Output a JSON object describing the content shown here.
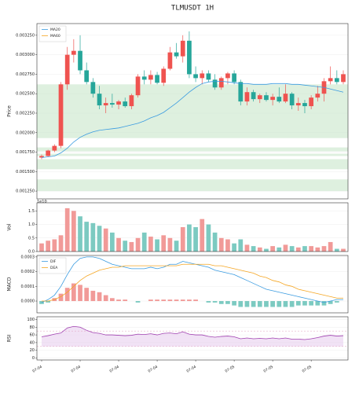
{
  "chart_data": [
    {
      "type": "candlestick",
      "title": "TLMUSDT  1H",
      "ylabel": "Price",
      "ylim": [
        0.00115,
        0.0034
      ],
      "yticks": [
        {
          "value": 0.00125,
          "label": "0.001250"
        },
        {
          "value": 0.0015,
          "label": "0.001500"
        },
        {
          "value": 0.00175,
          "label": "0.001750"
        },
        {
          "value": 0.002,
          "label": "0.002000"
        },
        {
          "value": 0.00225,
          "label": "0.002250"
        },
        {
          "value": 0.0025,
          "label": "0.002500"
        },
        {
          "value": 0.00275,
          "label": "0.002750"
        },
        {
          "value": 0.003,
          "label": "0.003000"
        },
        {
          "value": 0.00325,
          "label": "0.003250"
        }
      ],
      "grid": true,
      "legend": "upper left",
      "up_color": "#ef5350",
      "down_color": "#26a69a",
      "zone_color": "#c8e6c9",
      "zones": [
        [
          0.00193,
          0.00262
        ],
        [
          0.00176,
          0.00181
        ],
        [
          0.0017,
          0.00173
        ],
        [
          0.00153,
          0.00166
        ],
        [
          0.00125,
          0.0014
        ]
      ],
      "open": [
        0.00168,
        0.0017,
        0.00177,
        0.00183,
        0.00262,
        0.003,
        0.00305,
        0.0028,
        0.00265,
        0.0025,
        0.00235,
        0.00238,
        0.00236,
        0.0024,
        0.00234,
        0.00248,
        0.00272,
        0.00268,
        0.00274,
        0.00264,
        0.00282,
        0.00303,
        0.00298,
        0.00318,
        0.00275,
        0.0027,
        0.00276,
        0.00268,
        0.00258,
        0.0027,
        0.00276,
        0.00265,
        0.0024,
        0.00252,
        0.00243,
        0.00248,
        0.00242,
        0.00246,
        0.0024,
        0.0025,
        0.00235,
        0.00238,
        0.00234,
        0.00245,
        0.0025,
        0.00266,
        0.0027,
        0.00265
      ],
      "high": [
        0.00172,
        0.00178,
        0.00185,
        0.00265,
        0.0031,
        0.0032,
        0.00325,
        0.0029,
        0.0027,
        0.0026,
        0.00245,
        0.0025,
        0.00242,
        0.00245,
        0.0025,
        0.00275,
        0.0028,
        0.0028,
        0.00278,
        0.00285,
        0.0031,
        0.00315,
        0.00325,
        0.0033,
        0.00285,
        0.0028,
        0.0028,
        0.00275,
        0.00272,
        0.00278,
        0.0028,
        0.00268,
        0.00258,
        0.00255,
        0.0025,
        0.00252,
        0.0025,
        0.00258,
        0.00262,
        0.00252,
        0.00245,
        0.00242,
        0.00248,
        0.0026,
        0.0027,
        0.00285,
        0.0028,
        0.0028
      ],
      "low": [
        0.00166,
        0.00169,
        0.00175,
        0.0018,
        0.00255,
        0.0029,
        0.00275,
        0.00262,
        0.00245,
        0.0023,
        0.00225,
        0.00232,
        0.0023,
        0.00232,
        0.0023,
        0.00245,
        0.00262,
        0.00262,
        0.00262,
        0.0026,
        0.0028,
        0.00295,
        0.0029,
        0.0027,
        0.00265,
        0.00262,
        0.00265,
        0.00255,
        0.00255,
        0.00262,
        0.00262,
        0.00235,
        0.00235,
        0.0024,
        0.00238,
        0.0024,
        0.00235,
        0.00238,
        0.00238,
        0.0023,
        0.00228,
        0.00225,
        0.0023,
        0.0024,
        0.0024,
        0.00262,
        0.00262,
        0.00262
      ],
      "close": [
        0.0017,
        0.00177,
        0.00183,
        0.00262,
        0.003,
        0.00305,
        0.0028,
        0.00265,
        0.0025,
        0.00235,
        0.00238,
        0.00236,
        0.0024,
        0.00234,
        0.00248,
        0.00272,
        0.00268,
        0.00274,
        0.00264,
        0.00282,
        0.00303,
        0.00298,
        0.00318,
        0.00275,
        0.0027,
        0.00276,
        0.00268,
        0.00258,
        0.0027,
        0.00276,
        0.00265,
        0.0024,
        0.00252,
        0.00243,
        0.00248,
        0.00242,
        0.00246,
        0.0024,
        0.0025,
        0.00235,
        0.00238,
        0.00234,
        0.00245,
        0.0025,
        0.00266,
        0.0027,
        0.00265,
        0.00275
      ],
      "series": [
        {
          "name": "MA20",
          "color": "#3a9be0",
          "values": [
            0.00168,
            0.00169,
            0.0017,
            0.00174,
            0.0018,
            0.00188,
            0.00194,
            0.00198,
            0.00201,
            0.00203,
            0.00204,
            0.00205,
            0.00206,
            0.00208,
            0.0021,
            0.00212,
            0.00215,
            0.00219,
            0.00222,
            0.00226,
            0.00232,
            0.00238,
            0.00245,
            0.00252,
            0.00258,
            0.00263,
            0.00265,
            0.00266,
            0.00266,
            0.00265,
            0.00264,
            0.00263,
            0.00263,
            0.00262,
            0.00262,
            0.00262,
            0.00263,
            0.00263,
            0.00263,
            0.00262,
            0.00262,
            0.00261,
            0.0026,
            0.00259,
            0.00258,
            0.00256,
            0.00254,
            0.00252
          ]
        },
        {
          "name": "MA60",
          "color": "#f5a623",
          "values": [
            null,
            null,
            null,
            null,
            null,
            null,
            null,
            null,
            null,
            null,
            null,
            null,
            null,
            null,
            null,
            null,
            null,
            null,
            null,
            null,
            null,
            null,
            null,
            null,
            null,
            null,
            null,
            null,
            null,
            null,
            null,
            null,
            null,
            null,
            null,
            null,
            null,
            null,
            null,
            null,
            null,
            null,
            null,
            null,
            null,
            null,
            null,
            null
          ]
        }
      ]
    },
    {
      "type": "bar",
      "ylabel": "Vol",
      "offset_label": "1e10",
      "ylim": [
        0,
        1.8
      ],
      "yticks": [
        {
          "value": 0,
          "label": "0.0"
        },
        0.5,
        {
          "value": 1,
          "label": "1.0"
        },
        1.5
      ],
      "grid": true,
      "up_color": "#f19a98",
      "down_color": "#7ccac1",
      "values": [
        0.3,
        0.4,
        0.45,
        0.6,
        1.6,
        1.5,
        1.3,
        1.1,
        1.05,
        0.95,
        0.85,
        0.7,
        0.5,
        0.4,
        0.35,
        0.5,
        0.7,
        0.55,
        0.45,
        0.6,
        0.5,
        0.4,
        0.9,
        1.0,
        0.9,
        1.2,
        1.0,
        0.7,
        0.5,
        0.45,
        0.3,
        0.45,
        0.25,
        0.2,
        0.15,
        0.1,
        0.2,
        0.15,
        0.25,
        0.2,
        0.15,
        0.2,
        0.2,
        0.15,
        0.2,
        0.35,
        0.1,
        0.1
      ]
    },
    {
      "type": "macd",
      "ylabel": "MACD",
      "ylim": [
        -8e-05,
        0.00031
      ],
      "yticks": [
        {
          "value": 0,
          "label": "0.0000"
        },
        {
          "value": 0.0001,
          "label": "0.0001"
        },
        {
          "value": 0.0002,
          "label": "0.0002"
        },
        {
          "value": 0.0003,
          "label": "0.0003"
        }
      ],
      "grid": true,
      "legend": "upper left",
      "up_color": "#f19a98",
      "down_color": "#7ccac1",
      "hist": [
        -2e-05,
        -1e-05,
        2e-05,
        5e-05,
        9e-05,
        0.00012,
        0.00011,
        9e-05,
        7e-05,
        6e-05,
        4e-05,
        2e-05,
        1e-05,
        1e-05,
        0.0,
        -1e-05,
        0.0,
        1e-05,
        1e-05,
        1e-05,
        1e-05,
        1e-05,
        1e-05,
        1e-05,
        1e-05,
        0.0,
        -1e-05,
        -1e-05,
        -2e-05,
        -2e-05,
        -3e-05,
        -4e-05,
        -4e-05,
        -4e-05,
        -4e-05,
        -4e-05,
        -4e-05,
        -4e-05,
        -4e-05,
        -4e-05,
        -3e-05,
        -3e-05,
        -3e-05,
        -3e-05,
        -3e-05,
        -2e-05,
        -1e-05,
        0.0
      ],
      "series": [
        {
          "name": "DIF",
          "color": "#3a9be0",
          "values": [
            -1e-05,
            1e-05,
            4e-05,
            0.0001,
            0.00018,
            0.00025,
            0.00029,
            0.0003,
            0.0003,
            0.00029,
            0.00027,
            0.00025,
            0.00024,
            0.00023,
            0.00022,
            0.00022,
            0.00022,
            0.00023,
            0.00022,
            0.00023,
            0.00025,
            0.00025,
            0.00027,
            0.00026,
            0.00025,
            0.00024,
            0.00023,
            0.00021,
            0.0002,
            0.00019,
            0.00018,
            0.00016,
            0.00014,
            0.00012,
            0.0001,
            8e-05,
            7e-05,
            6e-05,
            5e-05,
            4e-05,
            3e-05,
            2e-05,
            1e-05,
            0.0,
            -1e-05,
            0.0,
            1e-05,
            1e-05
          ]
        },
        {
          "name": "DEA",
          "color": "#f5a623",
          "values": [
            0.0,
            0.0,
            1e-05,
            3e-05,
            6e-05,
            0.0001,
            0.00014,
            0.00017,
            0.00019,
            0.00021,
            0.00022,
            0.00023,
            0.00023,
            0.00024,
            0.00024,
            0.00024,
            0.00024,
            0.00024,
            0.00024,
            0.00024,
            0.00024,
            0.00024,
            0.00025,
            0.00025,
            0.00025,
            0.00025,
            0.00025,
            0.00024,
            0.00024,
            0.00023,
            0.00022,
            0.00021,
            0.0002,
            0.00019,
            0.00017,
            0.00016,
            0.00014,
            0.00013,
            0.00011,
            0.0001,
            8e-05,
            7e-05,
            6e-05,
            5e-05,
            4e-05,
            3e-05,
            2e-05,
            2e-05
          ]
        }
      ]
    },
    {
      "type": "line",
      "ylabel": "RSI",
      "ylim": [
        -5,
        107
      ],
      "yticks": [
        0,
        20,
        40,
        60,
        80,
        100
      ],
      "grid": true,
      "color": "#a040b0",
      "fill_color": "#e8cfee",
      "hlines": [
        70,
        30
      ],
      "hline_color": "#e0a0c0",
      "values": [
        55,
        58,
        62,
        65,
        78,
        82,
        80,
        72,
        66,
        64,
        60,
        60,
        59,
        58,
        59,
        62,
        61,
        63,
        60,
        64,
        65,
        63,
        68,
        62,
        60,
        60,
        56,
        54,
        56,
        57,
        55,
        50,
        52,
        50,
        51,
        50,
        52,
        50,
        52,
        49,
        49,
        48,
        50,
        53,
        57,
        59,
        57,
        58
      ],
      "categories": [
        "07-04",
        null,
        null,
        null,
        null,
        null,
        "07-04",
        null,
        null,
        null,
        null,
        null,
        "07-04",
        null,
        null,
        null,
        null,
        null,
        "07-04",
        null,
        null,
        null,
        null,
        null,
        "07-04",
        null,
        null,
        null,
        null,
        null,
        "07-05",
        null,
        null,
        null,
        null,
        null,
        "07-05",
        null,
        null,
        null,
        null,
        null,
        "07-05",
        null,
        null,
        null,
        null,
        null
      ]
    }
  ]
}
